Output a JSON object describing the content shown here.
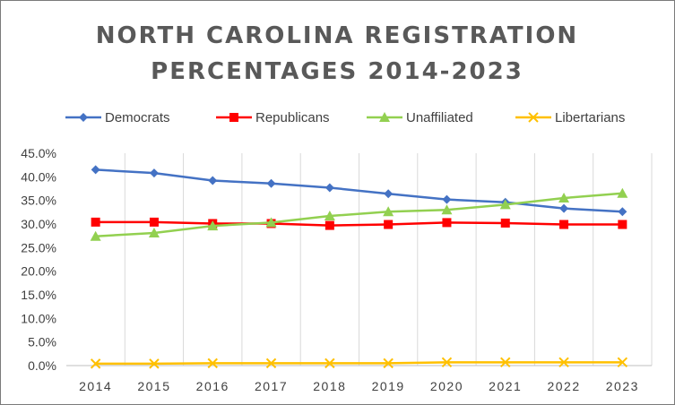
{
  "chart_data": {
    "type": "line",
    "title_line1": "NORTH CAROLINA REGISTRATION",
    "title_line2": "PERCENTAGES 2014-2023",
    "xlabel": "",
    "ylabel": "",
    "x": [
      "2014",
      "2015",
      "2016",
      "2017",
      "2018",
      "2019",
      "2020",
      "2021",
      "2022",
      "2023"
    ],
    "ylim": [
      0,
      45
    ],
    "yticks": [
      "0.0%",
      "5.0%",
      "10.0%",
      "15.0%",
      "20.0%",
      "25.0%",
      "30.0%",
      "35.0%",
      "40.0%",
      "45.0%"
    ],
    "grid": "vertical",
    "legend_position": "top",
    "series": [
      {
        "name": "Democrats",
        "color": "#4472C4",
        "marker": "diamond",
        "values": [
          41.5,
          40.8,
          39.2,
          38.6,
          37.7,
          36.4,
          35.2,
          34.6,
          33.3,
          32.6
        ]
      },
      {
        "name": "Republicans",
        "color": "#FF0000",
        "marker": "square",
        "values": [
          30.4,
          30.4,
          30.1,
          30.1,
          29.7,
          29.9,
          30.3,
          30.2,
          29.9,
          29.9
        ]
      },
      {
        "name": "Unaffiliated",
        "color": "#92D050",
        "marker": "triangle",
        "values": [
          27.4,
          28.1,
          29.6,
          30.3,
          31.7,
          32.6,
          33.0,
          34.1,
          35.5,
          36.5
        ]
      },
      {
        "name": "Libertarians",
        "color": "#FFC000",
        "marker": "x",
        "values": [
          0.4,
          0.4,
          0.5,
          0.5,
          0.5,
          0.5,
          0.7,
          0.7,
          0.7,
          0.7
        ]
      }
    ]
  }
}
